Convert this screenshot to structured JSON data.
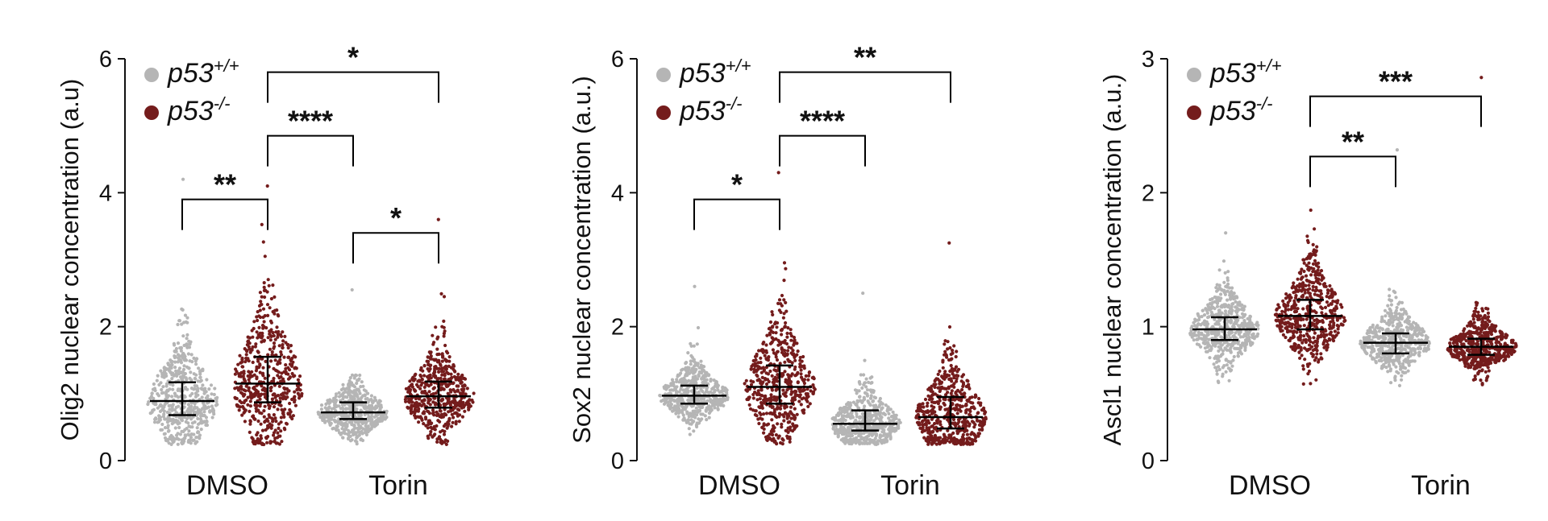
{
  "colors": {
    "wt": "#b5b5b5",
    "ko": "#741c1c",
    "axis": "#111111"
  },
  "legend": [
    {
      "gene": "p53",
      "sup": "+/+",
      "color": "#b5b5b5"
    },
    {
      "gene": "p53",
      "sup": "-/-",
      "color": "#741c1c"
    }
  ],
  "chart_data": [
    {
      "type": "scatter",
      "ylabel": "Olig2 nuclear concentration (a.u)",
      "ylim": [
        0,
        6
      ],
      "yticks": [
        "0",
        "2",
        "4",
        "6"
      ],
      "categories": [
        "DMSO",
        "Torin"
      ],
      "groups": [
        {
          "category": "DMSO",
          "series": "p53+/+",
          "median": 0.89,
          "q1": 0.68,
          "q3": 1.17,
          "max": 4.2
        },
        {
          "category": "DMSO",
          "series": "p53-/-",
          "median": 1.15,
          "q1": 0.87,
          "q3": 1.55,
          "max": 4.1
        },
        {
          "category": "Torin",
          "series": "p53+/+",
          "median": 0.72,
          "q1": 0.62,
          "q3": 0.87,
          "max": 2.55
        },
        {
          "category": "Torin",
          "series": "p53-/-",
          "median": 0.96,
          "q1": 0.79,
          "q3": 1.18,
          "max": 3.6
        }
      ],
      "significance": [
        {
          "from": 1,
          "to": 3,
          "level": 5.8,
          "label": "*"
        },
        {
          "from": 1,
          "to": 2,
          "level": 4.85,
          "label": "****"
        },
        {
          "from": 0,
          "to": 1,
          "level": 3.9,
          "label": "**"
        },
        {
          "from": 2,
          "to": 3,
          "level": 3.4,
          "label": "*"
        }
      ]
    },
    {
      "type": "scatter",
      "ylabel": "Sox2 nuclear concentration (a.u.)",
      "ylim": [
        0,
        6
      ],
      "yticks": [
        "0",
        "2",
        "4",
        "6"
      ],
      "categories": [
        "DMSO",
        "Torin"
      ],
      "groups": [
        {
          "category": "DMSO",
          "series": "p53+/+",
          "median": 0.97,
          "q1": 0.85,
          "q3": 1.12,
          "max": 2.6
        },
        {
          "category": "DMSO",
          "series": "p53-/-",
          "median": 1.1,
          "q1": 0.85,
          "q3": 1.42,
          "max": 4.3
        },
        {
          "category": "Torin",
          "series": "p53+/+",
          "median": 0.55,
          "q1": 0.45,
          "q3": 0.75,
          "max": 2.5
        },
        {
          "category": "Torin",
          "series": "p53-/-",
          "median": 0.65,
          "q1": 0.48,
          "q3": 0.95,
          "max": 3.25
        }
      ],
      "significance": [
        {
          "from": 1,
          "to": 3,
          "level": 5.8,
          "label": "**"
        },
        {
          "from": 1,
          "to": 2,
          "level": 4.85,
          "label": "****"
        },
        {
          "from": 0,
          "to": 1,
          "level": 3.9,
          "label": "*"
        }
      ]
    },
    {
      "type": "scatter",
      "ylabel": "Ascl1 nuclear concentration (a.u.)",
      "ylim": [
        0,
        3
      ],
      "yticks": [
        "0",
        "1",
        "2",
        "3"
      ],
      "categories": [
        "DMSO",
        "Torin"
      ],
      "groups": [
        {
          "category": "DMSO",
          "series": "p53+/+",
          "median": 0.98,
          "q1": 0.9,
          "q3": 1.07,
          "max": 1.7
        },
        {
          "category": "DMSO",
          "series": "p53-/-",
          "median": 1.08,
          "q1": 0.98,
          "q3": 1.2,
          "max": 1.87
        },
        {
          "category": "Torin",
          "series": "p53+/+",
          "median": 0.88,
          "q1": 0.8,
          "q3": 0.95,
          "max": 2.32
        },
        {
          "category": "Torin",
          "series": "p53-/-",
          "median": 0.85,
          "q1": 0.79,
          "q3": 0.91,
          "max": 2.86
        }
      ],
      "significance": [
        {
          "from": 1,
          "to": 3,
          "level": 2.72,
          "label": "***"
        },
        {
          "from": 1,
          "to": 2,
          "level": 2.27,
          "label": "**"
        }
      ]
    }
  ]
}
